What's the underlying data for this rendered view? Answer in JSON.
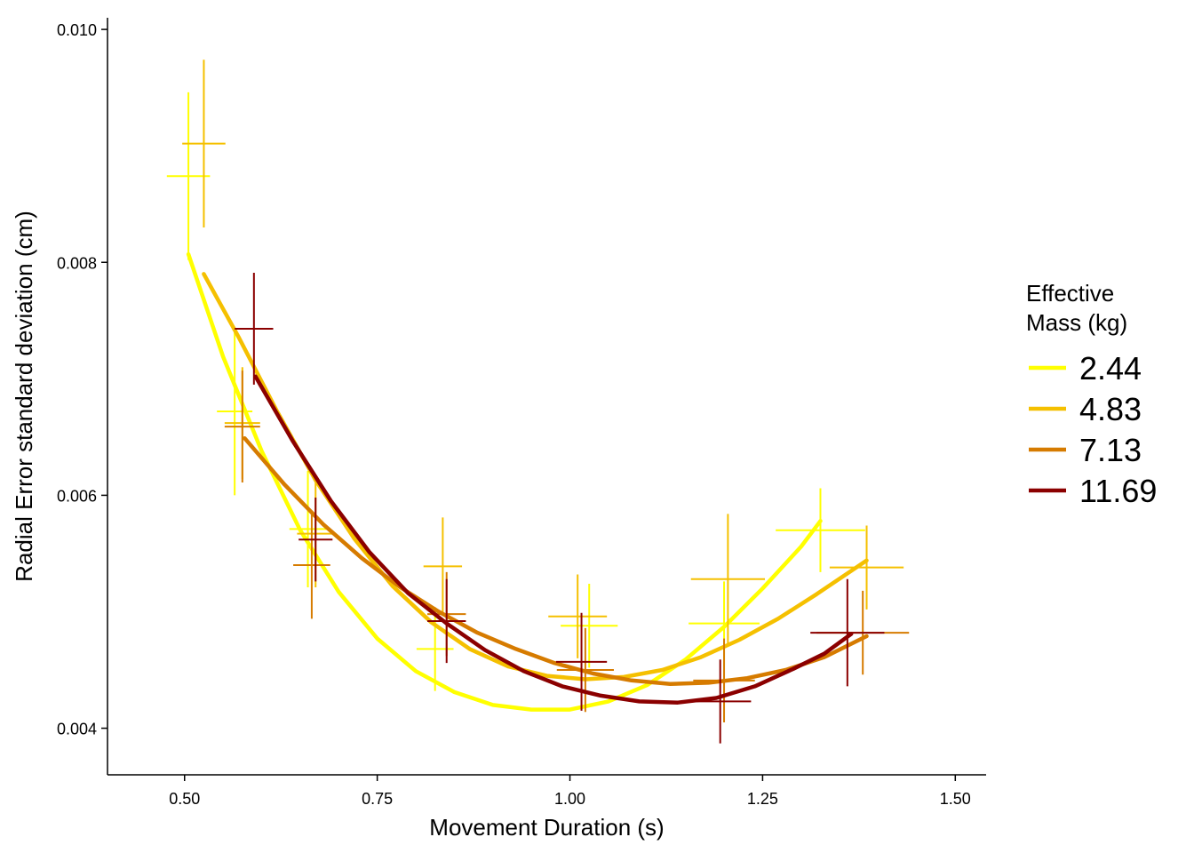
{
  "chart_data": {
    "type": "scatter",
    "title": "",
    "xlabel": "Movement Duration (s)",
    "ylabel": "Radial Error standard deviation (cm)",
    "xlim": [
      0.4,
      1.54
    ],
    "ylim": [
      0.0036,
      0.0101
    ],
    "x_ticks": [
      0.5,
      0.75,
      1.0,
      1.25,
      1.5
    ],
    "x_tick_labels": [
      "0.50",
      "0.75",
      "1.00",
      "1.25",
      "1.50"
    ],
    "y_ticks": [
      0.004,
      0.006,
      0.008,
      0.01
    ],
    "y_tick_labels": [
      "0.004",
      "0.006",
      "0.008",
      "0.010"
    ],
    "grid": false,
    "legend": {
      "title_lines": [
        "Effective",
        "Mass (kg)"
      ],
      "position": "right"
    },
    "series": [
      {
        "name": "2.44",
        "color": "#FFFF00",
        "points": [
          {
            "x": 0.505,
            "y": 0.00874,
            "xerr": 0.028,
            "yerr": 0.00072
          },
          {
            "x": 0.565,
            "y": 0.00672,
            "xerr": 0.023,
            "yerr": 0.00072
          },
          {
            "x": 0.66,
            "y": 0.00571,
            "xerr": 0.024,
            "yerr": 0.0005
          },
          {
            "x": 0.825,
            "y": 0.00468,
            "xerr": 0.024,
            "yerr": 0.00036
          },
          {
            "x": 1.025,
            "y": 0.00488,
            "xerr": 0.037,
            "yerr": 0.00036
          },
          {
            "x": 1.2,
            "y": 0.0049,
            "xerr": 0.046,
            "yerr": 0.00036
          },
          {
            "x": 1.325,
            "y": 0.0057,
            "xerr": 0.058,
            "yerr": 0.00036
          }
        ],
        "fit": [
          [
            0.505,
            0.00807
          ],
          [
            0.55,
            0.00719
          ],
          [
            0.6,
            0.00638
          ],
          [
            0.65,
            0.0057
          ],
          [
            0.7,
            0.00517
          ],
          [
            0.75,
            0.00477
          ],
          [
            0.8,
            0.00449
          ],
          [
            0.85,
            0.00431
          ],
          [
            0.9,
            0.0042
          ],
          [
            0.95,
            0.00416
          ],
          [
            1.0,
            0.00416
          ],
          [
            1.05,
            0.00423
          ],
          [
            1.1,
            0.00437
          ],
          [
            1.15,
            0.00459
          ],
          [
            1.2,
            0.00487
          ],
          [
            1.25,
            0.0052
          ],
          [
            1.3,
            0.00556
          ],
          [
            1.325,
            0.00578
          ]
        ]
      },
      {
        "name": "4.83",
        "color": "#F5C000",
        "points": [
          {
            "x": 0.525,
            "y": 0.00902,
            "xerr": 0.028,
            "yerr": 0.00072
          },
          {
            "x": 0.575,
            "y": 0.00662,
            "xerr": 0.023,
            "yerr": 0.00048
          },
          {
            "x": 0.67,
            "y": 0.00567,
            "xerr": 0.024,
            "yerr": 0.00046
          },
          {
            "x": 0.835,
            "y": 0.00539,
            "xerr": 0.025,
            "yerr": 0.00042
          },
          {
            "x": 1.01,
            "y": 0.00496,
            "xerr": 0.038,
            "yerr": 0.00036
          },
          {
            "x": 1.205,
            "y": 0.00528,
            "xerr": 0.048,
            "yerr": 0.00056
          },
          {
            "x": 1.385,
            "y": 0.00538,
            "xerr": 0.048,
            "yerr": 0.00036
          }
        ],
        "fit": [
          [
            0.525,
            0.0079
          ],
          [
            0.57,
            0.00736
          ],
          [
            0.62,
            0.00672
          ],
          [
            0.67,
            0.00613
          ],
          [
            0.72,
            0.00563
          ],
          [
            0.77,
            0.00522
          ],
          [
            0.82,
            0.00491
          ],
          [
            0.87,
            0.00468
          ],
          [
            0.92,
            0.00453
          ],
          [
            0.97,
            0.00445
          ],
          [
            1.02,
            0.00442
          ],
          [
            1.07,
            0.00444
          ],
          [
            1.12,
            0.0045
          ],
          [
            1.17,
            0.00461
          ],
          [
            1.22,
            0.00476
          ],
          [
            1.27,
            0.00494
          ],
          [
            1.32,
            0.00515
          ],
          [
            1.385,
            0.00544
          ]
        ]
      },
      {
        "name": "7.13",
        "color": "#D67B00",
        "points": [
          {
            "x": 0.575,
            "y": 0.00659,
            "xerr": 0.023,
            "yerr": 0.00048
          },
          {
            "x": 0.665,
            "y": 0.0054,
            "xerr": 0.024,
            "yerr": 0.00046
          },
          {
            "x": 0.84,
            "y": 0.00498,
            "xerr": 0.025,
            "yerr": 0.00036
          },
          {
            "x": 1.02,
            "y": 0.0045,
            "xerr": 0.037,
            "yerr": 0.00036
          },
          {
            "x": 1.2,
            "y": 0.00441,
            "xerr": 0.04,
            "yerr": 0.00036
          },
          {
            "x": 1.38,
            "y": 0.00482,
            "xerr": 0.06,
            "yerr": 0.00036
          }
        ],
        "fit": [
          [
            0.578,
            0.00649
          ],
          [
            0.63,
            0.00609
          ],
          [
            0.68,
            0.00575
          ],
          [
            0.73,
            0.00546
          ],
          [
            0.78,
            0.00521
          ],
          [
            0.83,
            0.005
          ],
          [
            0.88,
            0.00482
          ],
          [
            0.93,
            0.00468
          ],
          [
            0.98,
            0.00456
          ],
          [
            1.03,
            0.00447
          ],
          [
            1.08,
            0.00441
          ],
          [
            1.13,
            0.00438
          ],
          [
            1.18,
            0.00439
          ],
          [
            1.23,
            0.00443
          ],
          [
            1.28,
            0.0045
          ],
          [
            1.33,
            0.00461
          ],
          [
            1.385,
            0.00479
          ]
        ]
      },
      {
        "name": "11.69",
        "color": "#8B0000",
        "points": [
          {
            "x": 0.59,
            "y": 0.00743,
            "xerr": 0.025,
            "yerr": 0.00048
          },
          {
            "x": 0.67,
            "y": 0.00562,
            "xerr": 0.022,
            "yerr": 0.00036
          },
          {
            "x": 0.84,
            "y": 0.00492,
            "xerr": 0.025,
            "yerr": 0.00036
          },
          {
            "x": 1.015,
            "y": 0.00457,
            "xerr": 0.033,
            "yerr": 0.00042
          },
          {
            "x": 1.195,
            "y": 0.00423,
            "xerr": 0.04,
            "yerr": 0.00036
          },
          {
            "x": 1.36,
            "y": 0.00482,
            "xerr": 0.048,
            "yerr": 0.00046
          }
        ],
        "fit": [
          [
            0.592,
            0.00702
          ],
          [
            0.64,
            0.00647
          ],
          [
            0.69,
            0.00595
          ],
          [
            0.74,
            0.00551
          ],
          [
            0.79,
            0.00516
          ],
          [
            0.84,
            0.0049
          ],
          [
            0.89,
            0.00467
          ],
          [
            0.94,
            0.00449
          ],
          [
            0.99,
            0.00436
          ],
          [
            1.04,
            0.00428
          ],
          [
            1.09,
            0.00423
          ],
          [
            1.14,
            0.00422
          ],
          [
            1.19,
            0.00426
          ],
          [
            1.24,
            0.00436
          ],
          [
            1.29,
            0.00451
          ],
          [
            1.33,
            0.00464
          ],
          [
            1.365,
            0.00481
          ]
        ]
      }
    ]
  }
}
